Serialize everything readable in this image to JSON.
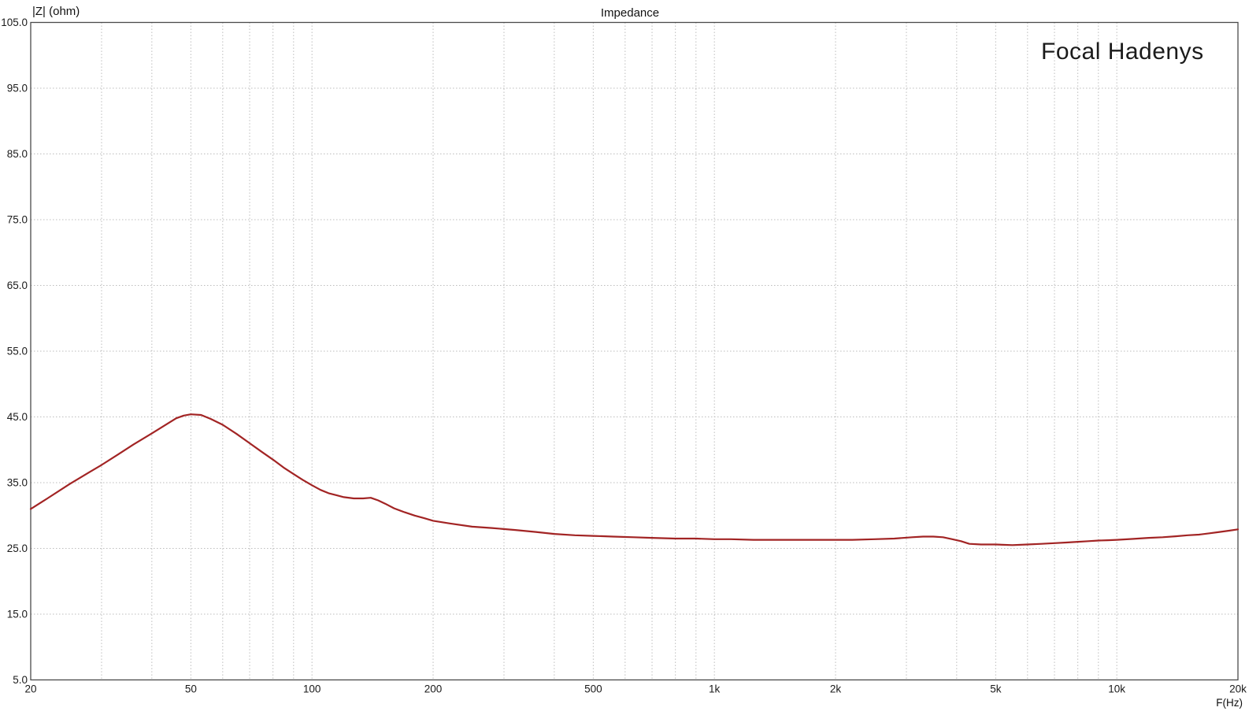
{
  "chart_data": {
    "type": "line",
    "title": "Impedance",
    "xlabel": "F(Hz)",
    "ylabel": "|Z| (ohm)",
    "annotation": "Focal Hadenys",
    "x_scale": "log",
    "xlim": [
      20,
      20000
    ],
    "ylim": [
      5,
      105
    ],
    "grid": true,
    "legend": "none",
    "colors": {
      "curve": "#a22424",
      "grid": "#bdbdbd",
      "axis_border": "#4a4a4a",
      "text": "#1a1a1a",
      "background": "#ffffff"
    },
    "x_ticks": [
      {
        "f": 20,
        "label": "20"
      },
      {
        "f": 50,
        "label": "50"
      },
      {
        "f": 100,
        "label": "100"
      },
      {
        "f": 200,
        "label": "200"
      },
      {
        "f": 500,
        "label": "500"
      },
      {
        "f": 1000,
        "label": "1k"
      },
      {
        "f": 2000,
        "label": "2k"
      },
      {
        "f": 5000,
        "label": "5k"
      },
      {
        "f": 10000,
        "label": "10k"
      },
      {
        "f": 20000,
        "label": "20k"
      }
    ],
    "y_ticks": [
      {
        "v": 105,
        "label": "105.0"
      },
      {
        "v": 95,
        "label": "95.0"
      },
      {
        "v": 85,
        "label": "85.0"
      },
      {
        "v": 75,
        "label": "75.0"
      },
      {
        "v": 65,
        "label": "65.0"
      },
      {
        "v": 55,
        "label": "55.0"
      },
      {
        "v": 45,
        "label": "45.0"
      },
      {
        "v": 35,
        "label": "35.0"
      },
      {
        "v": 25,
        "label": "25.0"
      },
      {
        "v": 15,
        "label": "15.0"
      },
      {
        "v": 5,
        "label": "5.0"
      }
    ],
    "x_gridlines": [
      30,
      40,
      50,
      60,
      70,
      80,
      90,
      100,
      200,
      300,
      400,
      500,
      600,
      700,
      800,
      900,
      1000,
      2000,
      3000,
      4000,
      5000,
      6000,
      7000,
      8000,
      9000,
      10000
    ],
    "y_gridlines": [
      15,
      25,
      35,
      45,
      55,
      65,
      75,
      85,
      95
    ],
    "series": [
      {
        "name": "Focal Hadenys impedance",
        "color": "#a22424",
        "points": [
          [
            20,
            31.0
          ],
          [
            22,
            32.6
          ],
          [
            25,
            34.8
          ],
          [
            28,
            36.6
          ],
          [
            30,
            37.7
          ],
          [
            33,
            39.3
          ],
          [
            36,
            40.8
          ],
          [
            40,
            42.5
          ],
          [
            43,
            43.7
          ],
          [
            46,
            44.8
          ],
          [
            48,
            45.2
          ],
          [
            50,
            45.4
          ],
          [
            53,
            45.3
          ],
          [
            56,
            44.7
          ],
          [
            60,
            43.8
          ],
          [
            65,
            42.4
          ],
          [
            70,
            41.0
          ],
          [
            75,
            39.7
          ],
          [
            80,
            38.5
          ],
          [
            85,
            37.3
          ],
          [
            90,
            36.3
          ],
          [
            95,
            35.4
          ],
          [
            100,
            34.6
          ],
          [
            105,
            33.9
          ],
          [
            110,
            33.4
          ],
          [
            115,
            33.1
          ],
          [
            120,
            32.8
          ],
          [
            127,
            32.6
          ],
          [
            134,
            32.6
          ],
          [
            140,
            32.7
          ],
          [
            146,
            32.3
          ],
          [
            152,
            31.8
          ],
          [
            160,
            31.1
          ],
          [
            170,
            30.5
          ],
          [
            180,
            30.0
          ],
          [
            190,
            29.6
          ],
          [
            200,
            29.2
          ],
          [
            220,
            28.8
          ],
          [
            250,
            28.3
          ],
          [
            280,
            28.1
          ],
          [
            320,
            27.8
          ],
          [
            360,
            27.5
          ],
          [
            400,
            27.2
          ],
          [
            450,
            27.0
          ],
          [
            500,
            26.9
          ],
          [
            560,
            26.8
          ],
          [
            630,
            26.7
          ],
          [
            700,
            26.6
          ],
          [
            800,
            26.5
          ],
          [
            900,
            26.5
          ],
          [
            1000,
            26.4
          ],
          [
            1100,
            26.4
          ],
          [
            1250,
            26.3
          ],
          [
            1400,
            26.3
          ],
          [
            1600,
            26.3
          ],
          [
            1800,
            26.3
          ],
          [
            2000,
            26.3
          ],
          [
            2200,
            26.3
          ],
          [
            2500,
            26.4
          ],
          [
            2800,
            26.5
          ],
          [
            3100,
            26.7
          ],
          [
            3300,
            26.8
          ],
          [
            3500,
            26.8
          ],
          [
            3700,
            26.7
          ],
          [
            3900,
            26.4
          ],
          [
            4100,
            26.1
          ],
          [
            4300,
            25.7
          ],
          [
            4600,
            25.6
          ],
          [
            5000,
            25.6
          ],
          [
            5500,
            25.5
          ],
          [
            6000,
            25.6
          ],
          [
            6500,
            25.7
          ],
          [
            7000,
            25.8
          ],
          [
            7500,
            25.9
          ],
          [
            8000,
            26.0
          ],
          [
            8500,
            26.1
          ],
          [
            9000,
            26.2
          ],
          [
            9500,
            26.25
          ],
          [
            10000,
            26.3
          ],
          [
            11000,
            26.45
          ],
          [
            12000,
            26.6
          ],
          [
            13000,
            26.7
          ],
          [
            14000,
            26.85
          ],
          [
            15000,
            27.0
          ],
          [
            16000,
            27.1
          ],
          [
            17000,
            27.3
          ],
          [
            18000,
            27.5
          ],
          [
            19000,
            27.7
          ],
          [
            20000,
            27.9
          ]
        ]
      }
    ]
  }
}
